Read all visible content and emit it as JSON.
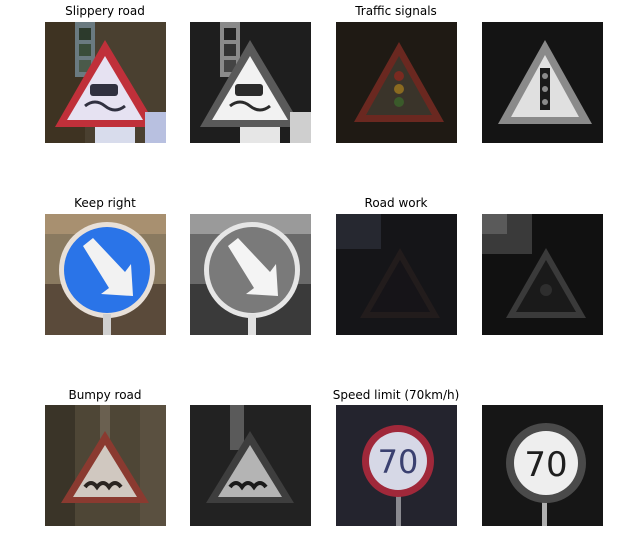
{
  "figure": {
    "panels": [
      {
        "title": "Slippery road",
        "sign": "slippery-road",
        "tone": "bright"
      },
      {
        "title": "Traffic signals",
        "sign": "traffic-signals",
        "tone": "dark"
      },
      {
        "title": "Keep right",
        "sign": "keep-right",
        "tone": "bright"
      },
      {
        "title": "Road work",
        "sign": "road-work",
        "tone": "very-dark"
      },
      {
        "title": "Bumpy road",
        "sign": "bumpy-road",
        "tone": "muted"
      },
      {
        "title": "Speed limit (70km/h)",
        "sign": "speed-limit-70",
        "tone": "dark",
        "sign_text": "70"
      }
    ],
    "colors": {
      "warning_red": "#b03030",
      "mandatory_blue": "#2a74e8",
      "background": "#ffffff"
    }
  }
}
